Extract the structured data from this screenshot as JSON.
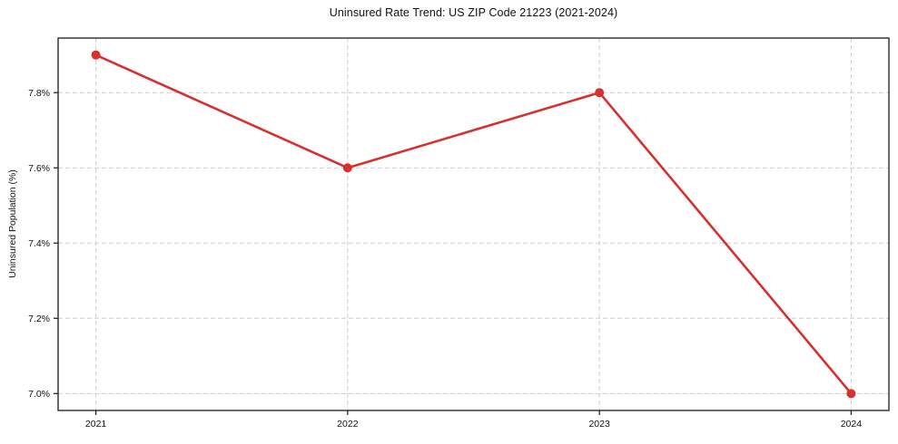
{
  "figure": {
    "background": "#ffffff"
  },
  "chart_data": {
    "type": "line",
    "title": "Uninsured Rate Trend: US ZIP Code 21223 (2021-2024)",
    "xlabel": "",
    "ylabel": "Uninsured Population (%)",
    "x": [
      2021,
      2022,
      2023,
      2024
    ],
    "x_tick_labels": [
      "2021",
      "2022",
      "2023",
      "2024"
    ],
    "y_ticks": [
      7.0,
      7.2,
      7.4,
      7.6,
      7.8
    ],
    "y_tick_labels": [
      "7.0%",
      "7.2%",
      "7.4%",
      "7.6%",
      "7.8%"
    ],
    "series": [
      {
        "name": "Uninsured Population (%)",
        "values": [
          7.9,
          7.6,
          7.8,
          7.0
        ],
        "color": "#d6302f",
        "marker": "circle",
        "line_width": 2.6,
        "marker_radius": 5
      }
    ],
    "xlim": [
      2020.85,
      2024.15
    ],
    "ylim": [
      6.955,
      7.945
    ],
    "grid": true,
    "grid_style": "dashed",
    "grid_color": "#cecece",
    "spine_color": "#1a1a1a",
    "tick_color": "#1a1a1a",
    "legend": "none"
  }
}
